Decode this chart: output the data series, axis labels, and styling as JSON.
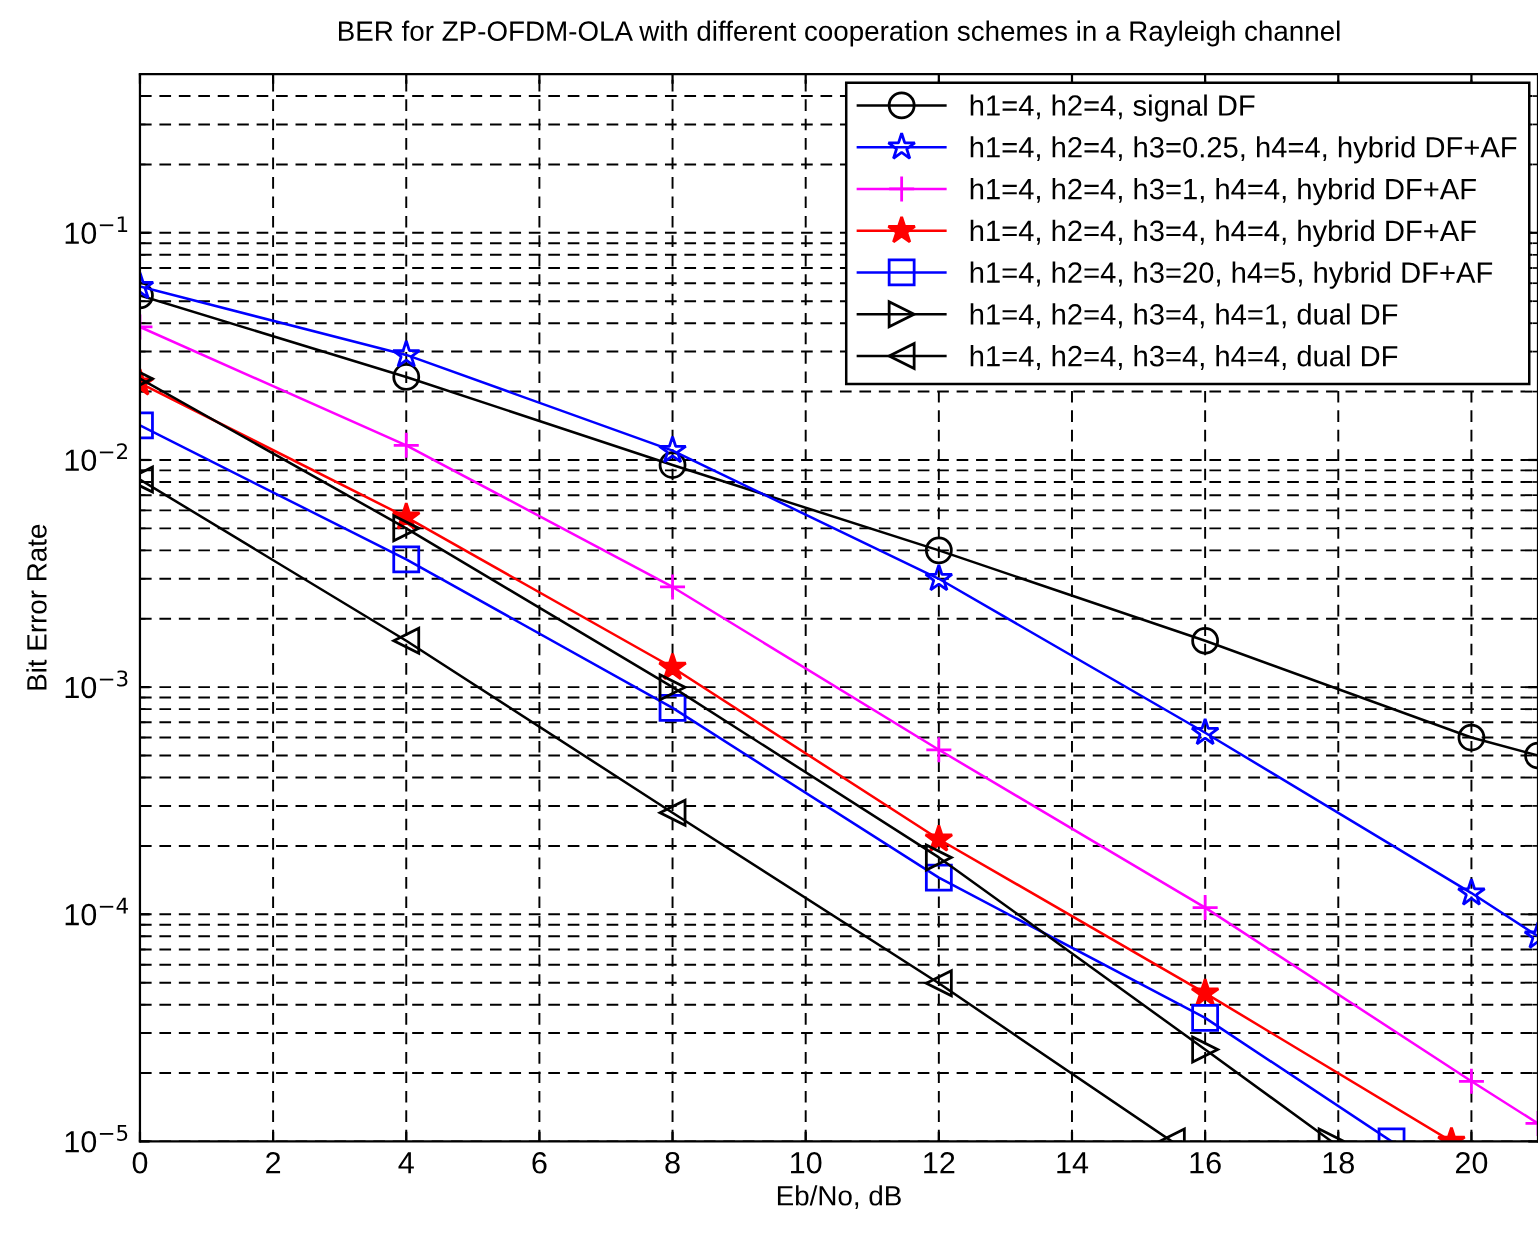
{
  "chart_data": {
    "type": "line",
    "title": "BER for ZP-OFDM-OLA with different cooperation schemes in a Rayleigh channel",
    "xlabel": "Eb/No, dB",
    "ylabel": "Bit Error Rate",
    "log": "y",
    "grid": true,
    "legend": "top right",
    "line_style": "solid",
    "xlim": [
      0,
      21
    ],
    "xticks": [
      0,
      2,
      4,
      6,
      8,
      10,
      12,
      14,
      16,
      18,
      20
    ],
    "ylim": [
      1e-05,
      0.5
    ],
    "yticks": [
      {
        "value": 1e-05,
        "label": "10$^{−5}$"
      },
      {
        "value": 0.0001,
        "label": "10$^{−4}$"
      },
      {
        "value": 0.001,
        "label": "10$^{−3}$"
      },
      {
        "value": 0.01,
        "label": "10$^{−2}$"
      },
      {
        "value": 0.1,
        "label": "10$^{−1}$"
      }
    ],
    "series": [
      {
        "name": "h1=4, h2=4, signal DF",
        "color": "#000000",
        "marker": "circle",
        "x": [
          0,
          4,
          8,
          12,
          16,
          20,
          21
        ],
        "values": [
          0.053,
          0.0232,
          0.0095,
          0.004,
          0.0016,
          0.0006,
          0.0005
        ]
      },
      {
        "name": "h1=4, h2=4, h3=0.25, h4=4, hybrid DF+AF",
        "color": "#0000ff",
        "marker": "star",
        "x": [
          0,
          4,
          8,
          12,
          16,
          20,
          21
        ],
        "values": [
          0.058,
          0.029,
          0.011,
          0.003,
          0.00063,
          0.000124,
          8e-05
        ]
      },
      {
        "name": "h1=4, h2=4, h3=1, h4=4, hybrid DF+AF",
        "color": "#ff00ff",
        "marker": "cross",
        "x": [
          0,
          4,
          8,
          12,
          16,
          20,
          21
        ],
        "values": [
          0.0385,
          0.0116,
          0.00276,
          0.00053,
          0.000107,
          1.84e-05,
          1.2e-05
        ]
      },
      {
        "name": "h1=4, h2=4, h3=4, h4=4, hybrid DF+AF",
        "color": "#ff0000",
        "marker": "star",
        "x": [
          0,
          4,
          8,
          12,
          16,
          19.7
        ],
        "values": [
          0.0218,
          0.0056,
          0.00122,
          0.000214,
          4.5e-05,
          1e-05
        ]
      },
      {
        "name": "h1=4, h2=4, h3=20, h4=5, hybrid DF+AF",
        "color": "#0000ff",
        "marker": "square",
        "x": [
          0,
          4,
          8,
          12,
          16,
          18.8
        ],
        "values": [
          0.0142,
          0.00365,
          0.00081,
          0.000145,
          3.5e-05,
          1e-05
        ]
      },
      {
        "name": "h1=4, h2=4, h3=4, h4=1, dual DF",
        "color": "#000000",
        "marker": "triangle_right",
        "x": [
          0,
          4,
          8,
          12,
          16,
          17.9
        ],
        "values": [
          0.0228,
          0.005,
          0.001,
          0.000178,
          2.54e-05,
          1e-05
        ]
      },
      {
        "name": "h1=4, h2=4, h3=4, h4=4, dual DF",
        "color": "#000000",
        "marker": "triangle_left",
        "x": [
          0,
          4,
          8,
          12,
          15.5
        ],
        "values": [
          0.0082,
          0.0016,
          0.00028,
          4.97e-05,
          1e-05
        ]
      }
    ]
  }
}
